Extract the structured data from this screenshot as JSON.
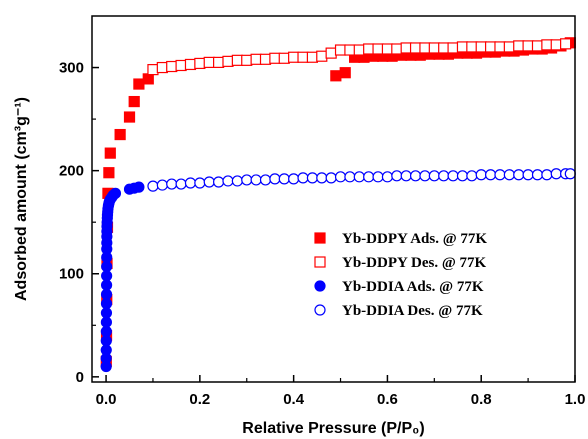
{
  "chart_data": {
    "type": "scatter",
    "title": "",
    "xlabel": "Relative Pressure (P/P₀)",
    "ylabel": "Adsorbed amount (cm³g⁻¹)",
    "xlim": [
      -0.03,
      1.0
    ],
    "ylim": [
      -5,
      350
    ],
    "xticks": [
      "0.0",
      "0.2",
      "0.4",
      "0.6",
      "0.8",
      "1.0"
    ],
    "xtick_values": [
      0.0,
      0.2,
      0.4,
      0.6,
      0.8,
      1.0
    ],
    "yticks": [
      "0",
      "100",
      "200",
      "300"
    ],
    "ytick_values": [
      0,
      100,
      200,
      300
    ],
    "grid": false,
    "legend_position": "lower-right",
    "series": [
      {
        "name": "Yb-DDPY Ads. @ 77K",
        "marker": "square",
        "fill": "filled",
        "color": "#ff0000",
        "x": [
          0.0005,
          0.001,
          0.0015,
          0.002,
          0.003,
          0.004,
          0.006,
          0.009,
          0.03,
          0.05,
          0.06,
          0.07,
          0.09,
          0.49,
          0.51,
          0.53,
          0.55,
          0.57,
          0.59,
          0.61,
          0.63,
          0.65,
          0.67,
          0.69,
          0.71,
          0.73,
          0.75,
          0.77,
          0.79,
          0.81,
          0.83,
          0.85,
          0.87,
          0.89,
          0.91,
          0.93,
          0.95,
          0.97,
          0.99
        ],
        "y": [
          15,
          40,
          75,
          110,
          145,
          178,
          198,
          217,
          235,
          252,
          267,
          284,
          289,
          292,
          295,
          310,
          310,
          311,
          311,
          311,
          312,
          312,
          312,
          313,
          313,
          313,
          314,
          314,
          314,
          315,
          315,
          316,
          316,
          317,
          318,
          318,
          319,
          321,
          324
        ]
      },
      {
        "name": "Yb-DDPY Des. @ 77K",
        "marker": "square",
        "fill": "open",
        "color": "#ff0000",
        "x": [
          0.1,
          0.12,
          0.14,
          0.16,
          0.18,
          0.2,
          0.22,
          0.24,
          0.26,
          0.28,
          0.3,
          0.32,
          0.34,
          0.36,
          0.38,
          0.4,
          0.42,
          0.44,
          0.46,
          0.48,
          0.5,
          0.52,
          0.54,
          0.56,
          0.58,
          0.6,
          0.62,
          0.64,
          0.66,
          0.68,
          0.7,
          0.72,
          0.74,
          0.76,
          0.78,
          0.8,
          0.82,
          0.84,
          0.86,
          0.88,
          0.9,
          0.92,
          0.94,
          0.96,
          0.98
        ],
        "y": [
          298,
          300,
          301,
          302,
          303,
          304,
          305,
          305,
          306,
          307,
          307,
          308,
          308,
          309,
          309,
          310,
          310,
          310,
          311,
          314,
          317,
          317,
          317,
          318,
          318,
          318,
          318,
          319,
          319,
          319,
          319,
          319,
          319,
          320,
          320,
          320,
          320,
          320,
          320,
          321,
          321,
          321,
          322,
          322,
          323
        ]
      },
      {
        "name": "Yb-DDIA Ads. @ 77K",
        "marker": "circle",
        "fill": "filled",
        "color": "#0000ff",
        "x": [
          0.0002,
          0.0003,
          0.0004,
          0.0005,
          0.0006,
          0.0007,
          0.0008,
          0.0009,
          0.001,
          0.0011,
          0.0012,
          0.0013,
          0.0014,
          0.0015,
          0.0016,
          0.0017,
          0.0018,
          0.002,
          0.0023,
          0.0027,
          0.003,
          0.0035,
          0.004,
          0.005,
          0.006,
          0.007,
          0.009,
          0.012,
          0.015,
          0.02,
          0.05,
          0.06,
          0.07
        ],
        "y": [
          10,
          18,
          26,
          35,
          44,
          53,
          62,
          71,
          80,
          89,
          98,
          107,
          116,
          124,
          130,
          136,
          141,
          146,
          150,
          154,
          157,
          160,
          163,
          166,
          168,
          170,
          172,
          174,
          176,
          178,
          182,
          183,
          184
        ]
      },
      {
        "name": "Yb-DDIA Des. @ 77K",
        "marker": "circle",
        "fill": "open",
        "color": "#0000ff",
        "x": [
          0.1,
          0.12,
          0.14,
          0.16,
          0.18,
          0.2,
          0.22,
          0.24,
          0.26,
          0.28,
          0.3,
          0.32,
          0.34,
          0.36,
          0.38,
          0.4,
          0.42,
          0.44,
          0.46,
          0.48,
          0.5,
          0.52,
          0.54,
          0.56,
          0.58,
          0.6,
          0.62,
          0.64,
          0.66,
          0.68,
          0.7,
          0.72,
          0.74,
          0.76,
          0.78,
          0.8,
          0.82,
          0.84,
          0.86,
          0.88,
          0.9,
          0.92,
          0.94,
          0.96,
          0.98,
          0.99
        ],
        "y": [
          185,
          186,
          187,
          187,
          188,
          188,
          189,
          189,
          190,
          190,
          191,
          191,
          191,
          192,
          192,
          192,
          193,
          193,
          193,
          193,
          194,
          194,
          194,
          194,
          194,
          194,
          195,
          195,
          195,
          195,
          195,
          195,
          195,
          195,
          195,
          196,
          196,
          196,
          196,
          196,
          196,
          196,
          196,
          197,
          197,
          197
        ]
      }
    ]
  }
}
